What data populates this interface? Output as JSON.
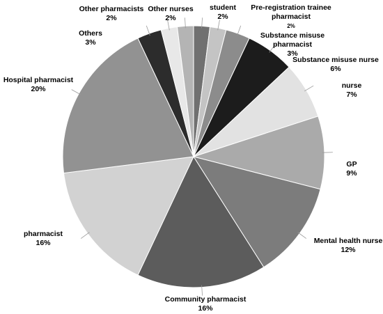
{
  "chart_data": {
    "type": "pie",
    "categories": [
      "student",
      "Pre-registration trainee pharmacist",
      "Substance misuse pharmacist",
      "Substance misuse nurse",
      "nurse",
      "GP",
      "Mental health nurse",
      "Community pharmacist",
      "pharmacist",
      "Hospital pharmacist",
      "Others",
      "Other pharmacists",
      "Other nurses"
    ],
    "values": [
      2,
      2,
      3,
      6,
      7,
      9,
      12,
      16,
      16,
      20,
      3,
      2,
      2
    ],
    "value_labels": [
      "2%",
      "2%",
      "3%",
      "6%",
      "7%",
      "9%",
      "12%",
      "16%",
      "16%",
      "20%",
      "3%",
      "2%",
      "2%"
    ],
    "colors": [
      "#707070",
      "#c4c4c4",
      "#8c8c8c",
      "#1c1c1c",
      "#e2e2e2",
      "#aaaaaa",
      "#7c7c7c",
      "#5c5c5c",
      "#d2d2d2",
      "#929292",
      "#2c2c2c",
      "#e8e8e8",
      "#b4b4b4"
    ]
  }
}
